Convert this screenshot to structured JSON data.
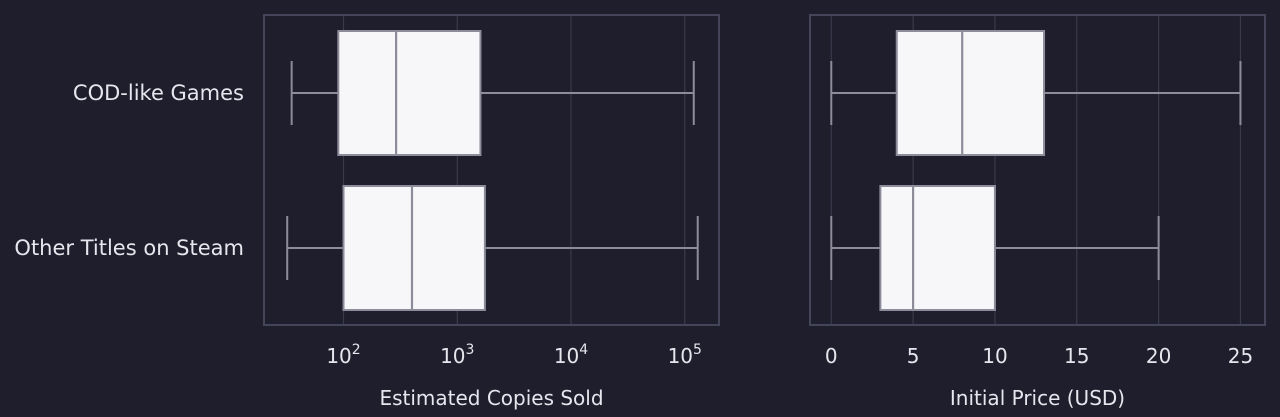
{
  "colors": {
    "background": "#1e1e2c",
    "panel_border": "#45455a",
    "grid": "#3a3a4d",
    "box_fill": "#f7f7fa",
    "box_edge": "#8c8c9a",
    "whisker": "#8c8c9a",
    "text": "#e6e6ee"
  },
  "chart_data": [
    {
      "type": "box",
      "orientation": "horizontal",
      "categories": [
        "COD-like Games",
        "Other Titles on Steam"
      ],
      "xlabel": "Estimated Copies Sold",
      "xscale": "log",
      "xlim": [
        20,
        200000
      ],
      "xticks": [
        100,
        1000,
        10000,
        100000
      ],
      "xtick_labels": [
        {
          "base": "10",
          "exp": "2"
        },
        {
          "base": "10",
          "exp": "3"
        },
        {
          "base": "10",
          "exp": "4"
        },
        {
          "base": "10",
          "exp": "5"
        }
      ],
      "grid": true,
      "boxes": [
        {
          "category": "COD-like Games",
          "whisker_low": 35,
          "q1": 90,
          "median": 290,
          "q3": 1600,
          "whisker_high": 120000
        },
        {
          "category": "Other Titles on Steam",
          "whisker_low": 32,
          "q1": 100,
          "median": 400,
          "q3": 1750,
          "whisker_high": 130000
        }
      ]
    },
    {
      "type": "box",
      "orientation": "horizontal",
      "categories": [
        "COD-like Games",
        "Other Titles on Steam"
      ],
      "xlabel": "Initial Price (USD)",
      "xscale": "linear",
      "xlim": [
        -1.3,
        26.5
      ],
      "xticks": [
        0,
        5,
        10,
        15,
        20,
        25
      ],
      "xtick_labels": [
        "0",
        "5",
        "10",
        "15",
        "20",
        "25"
      ],
      "grid": true,
      "boxes": [
        {
          "category": "COD-like Games",
          "whisker_low": 0,
          "q1": 4,
          "median": 8,
          "q3": 13,
          "whisker_high": 25
        },
        {
          "category": "Other Titles on Steam",
          "whisker_low": 0,
          "q1": 3,
          "median": 5,
          "q3": 10,
          "whisker_high": 20
        }
      ]
    }
  ]
}
